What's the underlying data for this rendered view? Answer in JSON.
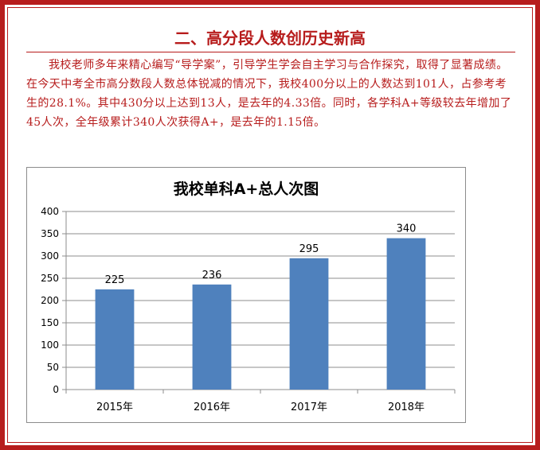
{
  "heading": "二、高分段人数创历史新高",
  "paragraph": "我校老师多年来精心编写“导学案”，引导学生学会自主学习与合作探究，取得了显著成绩。在今天中考全市高分数段人数总体锐减的情况下，我校400分以上的人数达到101人，占参考考生的28.1%。其中430分以上达到13人，是去年的4.33倍。同时，各学科A+等级较去年增加了45人次，全年级累计340人次获得A+，是去年的1.15倍。",
  "colors": {
    "accent": "#b71c1c",
    "bar": "#4f81bd"
  },
  "chart_data": {
    "type": "bar",
    "title": "我校单科A+总人次图",
    "categories": [
      "2015年",
      "2016年",
      "2017年",
      "2018年"
    ],
    "values": [
      225,
      236,
      295,
      340
    ],
    "data_labels": [
      "225",
      "236",
      "295",
      "340"
    ],
    "ylim": [
      0,
      400
    ],
    "yticks": [
      "0",
      "50",
      "100",
      "150",
      "200",
      "250",
      "300",
      "350",
      "400"
    ],
    "grid": true,
    "legend": "none"
  }
}
